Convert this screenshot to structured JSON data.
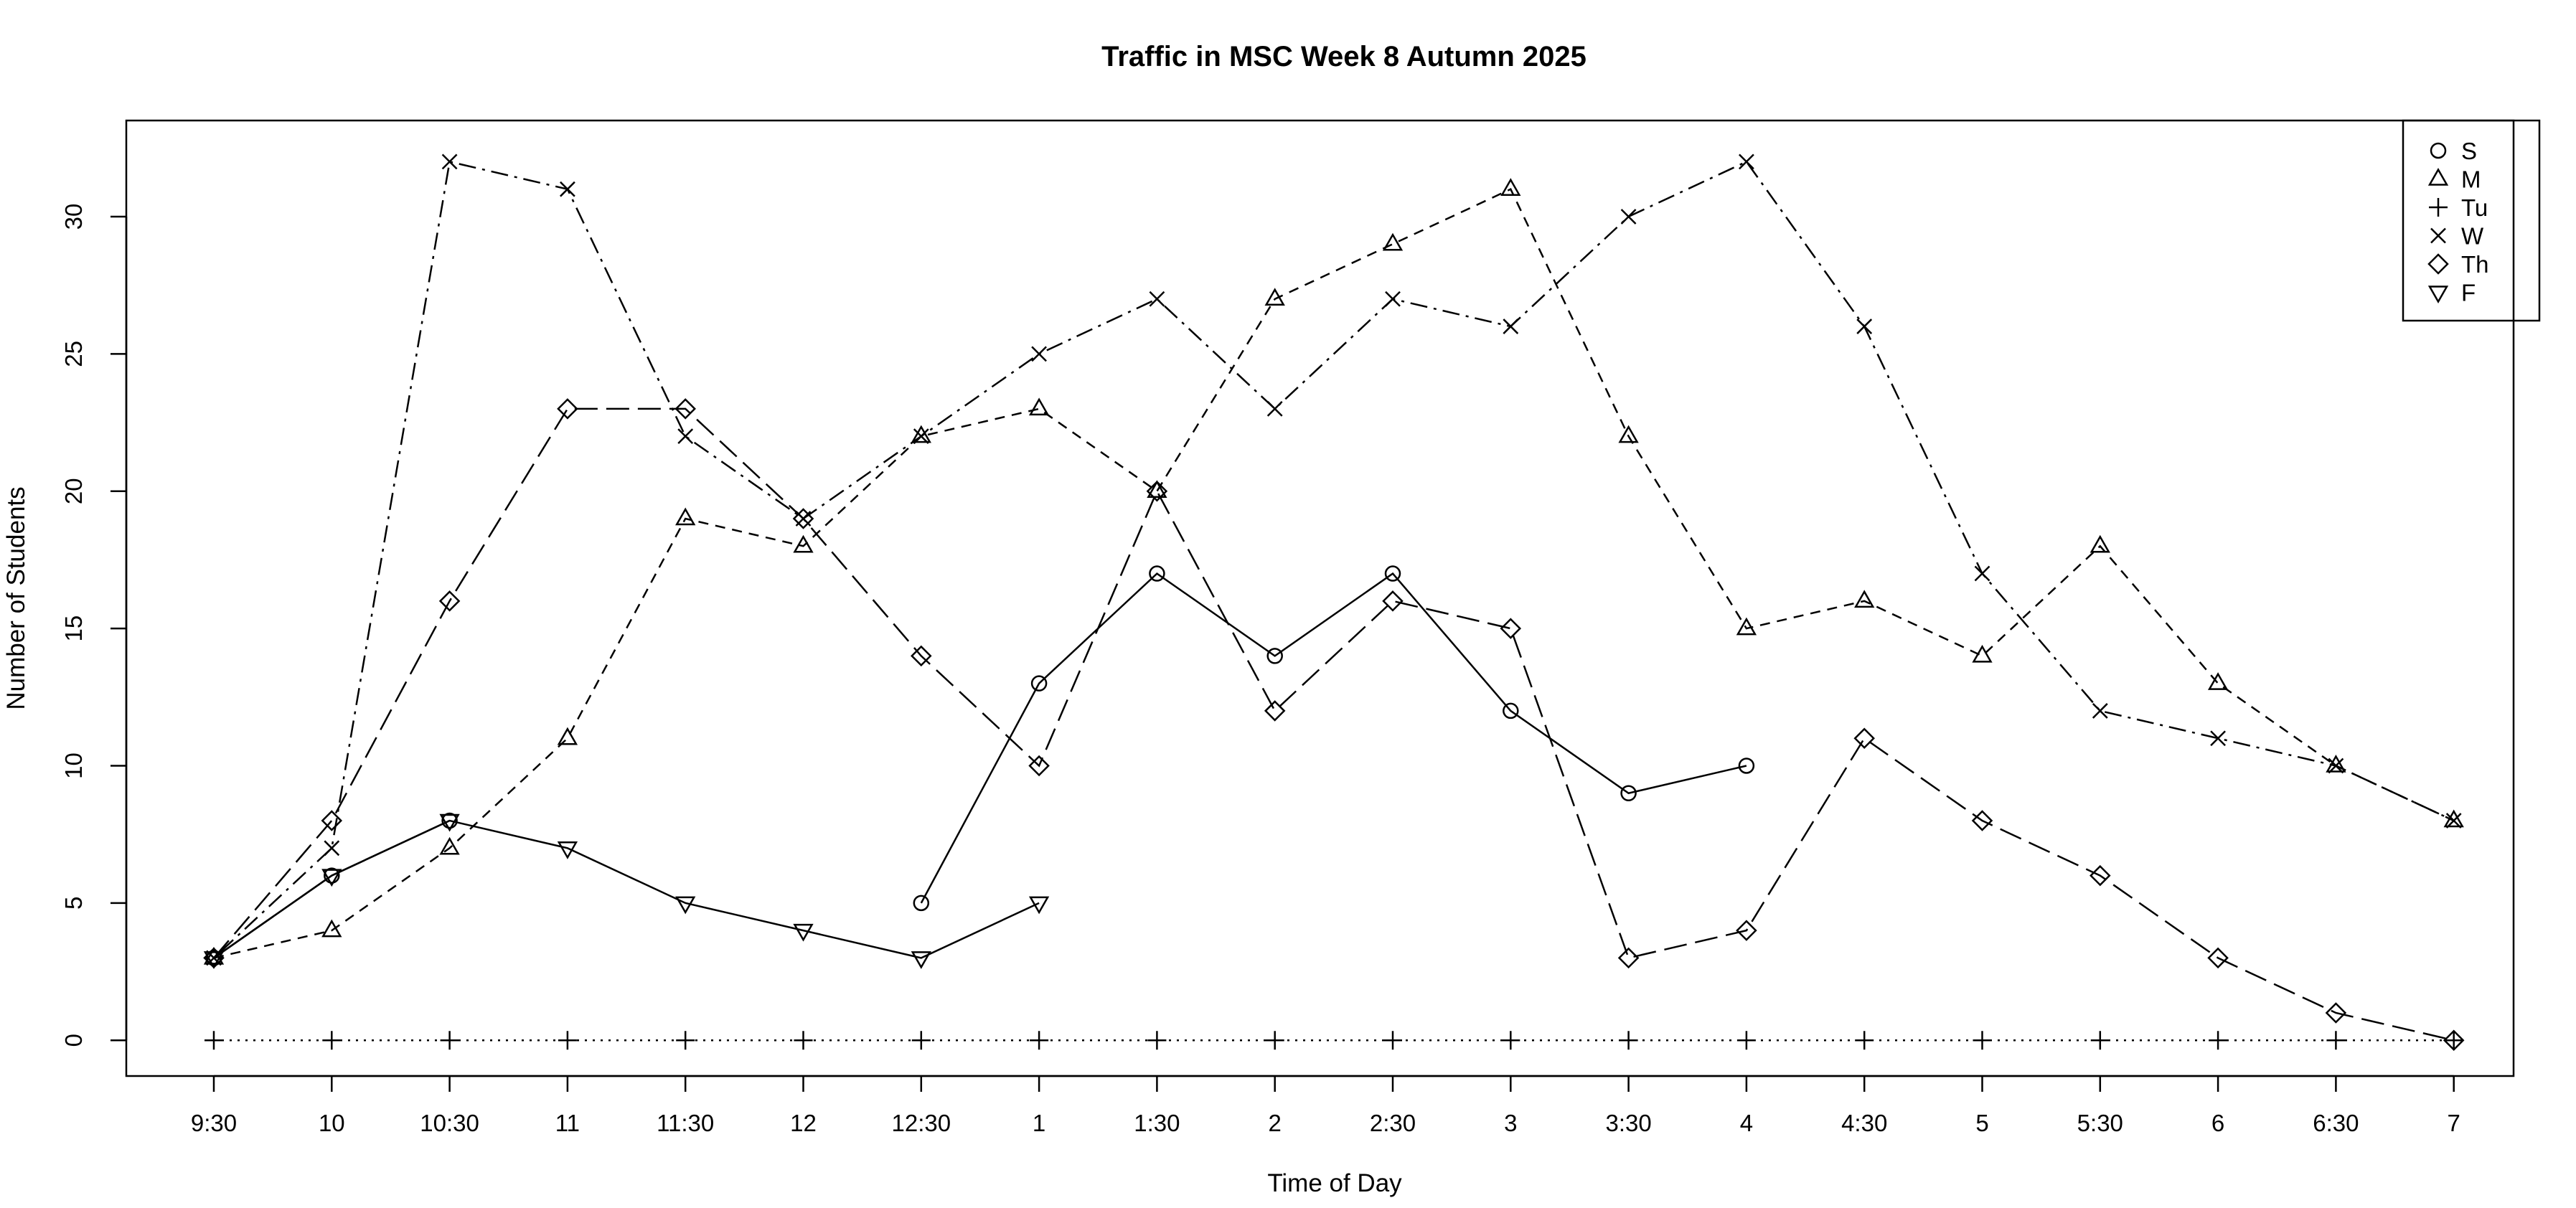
{
  "chart_data": {
    "type": "line",
    "title": "Traffic in MSC Week 8 Autumn 2025",
    "xlabel": "Time of Day",
    "ylabel": "Number of Students",
    "categories": [
      "9:30",
      "10",
      "10:30",
      "11",
      "11:30",
      "12",
      "12:30",
      "1",
      "1:30",
      "2",
      "2:30",
      "3",
      "3:30",
      "4",
      "4:30",
      "5",
      "5:30",
      "6",
      "6:30",
      "7"
    ],
    "ylim": [
      -1.3,
      33.5
    ],
    "yticks": [
      0,
      5,
      10,
      15,
      20,
      25,
      30
    ],
    "grid": false,
    "legend_position": "top-right",
    "series": [
      {
        "name": "S",
        "marker": "circle",
        "dash": "solid",
        "values": [
          3,
          6,
          8,
          null,
          null,
          null,
          5,
          13,
          17,
          14,
          17,
          12,
          9,
          10,
          null,
          null,
          null,
          null,
          null,
          null
        ]
      },
      {
        "name": "M",
        "marker": "triangle",
        "dash": "short-dash",
        "values": [
          3,
          4,
          7,
          11,
          19,
          18,
          22,
          23,
          20,
          27,
          29,
          31,
          22,
          15,
          16,
          14,
          18,
          13,
          10,
          8
        ]
      },
      {
        "name": "Tu",
        "marker": "plus",
        "dash": "dotted",
        "values": [
          0,
          0,
          0,
          0,
          0,
          0,
          0,
          0,
          0,
          0,
          0,
          0,
          0,
          0,
          0,
          0,
          0,
          0,
          0,
          0
        ]
      },
      {
        "name": "W",
        "marker": "cross",
        "dash": "dot-dash",
        "values": [
          3,
          7,
          32,
          31,
          22,
          19,
          22,
          25,
          27,
          23,
          27,
          26,
          30,
          32,
          26,
          17,
          12,
          11,
          10,
          8
        ]
      },
      {
        "name": "Th",
        "marker": "diamond",
        "dash": "long-dash",
        "values": [
          3,
          8,
          16,
          23,
          23,
          19,
          14,
          10,
          20,
          12,
          16,
          15,
          3,
          4,
          11,
          8,
          6,
          3,
          1,
          0
        ]
      },
      {
        "name": "F",
        "marker": "inv-triangle",
        "dash": "solid",
        "values": [
          3,
          6,
          8,
          7,
          5,
          4,
          3,
          5,
          null,
          null,
          null,
          null,
          null,
          null,
          null,
          null,
          null,
          null,
          null,
          null
        ]
      }
    ]
  }
}
